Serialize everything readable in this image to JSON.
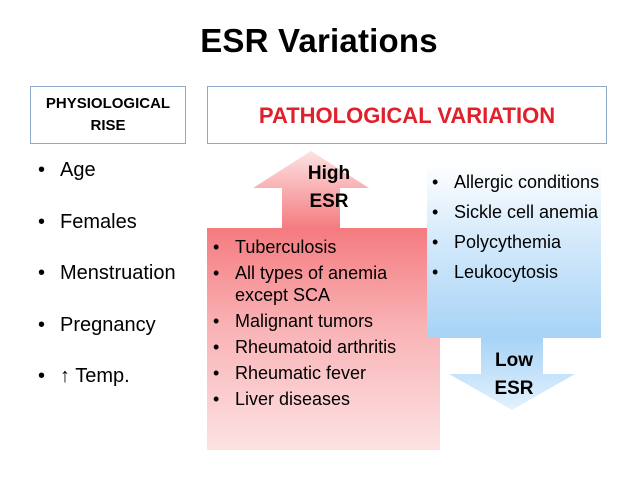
{
  "title": "ESR Variations",
  "physiological": {
    "header_line1": "PHYSIOLOGICAL",
    "header_line2": "RISE",
    "items": [
      "Age",
      "Females",
      "Menstruation",
      "Pregnancy",
      "↑ Temp."
    ]
  },
  "pathological": {
    "header": "PATHOLOGICAL VARIATION",
    "high": {
      "label_line1": "High",
      "label_line2": "ESR",
      "items": [
        "Tuberculosis",
        "All types of anemia except SCA",
        "Malignant tumors",
        "Rheumatoid arthritis",
        "Rheumatic fever",
        "Liver diseases"
      ]
    },
    "low": {
      "label_line1": "Low",
      "label_line2": "ESR",
      "items": [
        "Allergic conditions",
        "Sickle cell anemia",
        "Polycythemia",
        "Leukocytosis"
      ]
    }
  },
  "colors": {
    "accent_red": "#e0202a",
    "red_fill": "#f47b7f",
    "blue_fill": "#a7d3f6",
    "border": "#8fa9c8"
  }
}
